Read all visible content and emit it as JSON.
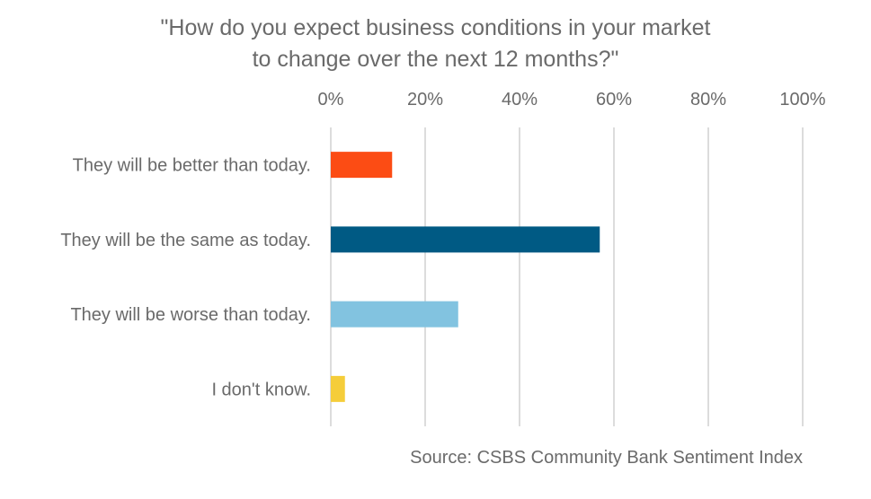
{
  "chart_data": {
    "type": "bar",
    "orientation": "horizontal",
    "title_lines": [
      "\"How do you expect business conditions in your market",
      "to change over the next 12 months?\""
    ],
    "categories": [
      "They will be better than today.",
      "They will be the same as today.",
      "They will be worse than today.",
      "I don't know."
    ],
    "values": [
      13,
      57,
      27,
      3
    ],
    "colors": [
      "#fc4c14",
      "#005a84",
      "#82c3e0",
      "#f5cd3a"
    ],
    "xlim": [
      0,
      100
    ],
    "xticks": [
      0,
      20,
      40,
      60,
      80,
      100
    ],
    "xtick_labels": [
      "0%",
      "20%",
      "40%",
      "60%",
      "80%",
      "100%"
    ],
    "x_axis_position": "top",
    "grid": true,
    "source": "Source: CSBS Community Bank Sentiment Index"
  }
}
